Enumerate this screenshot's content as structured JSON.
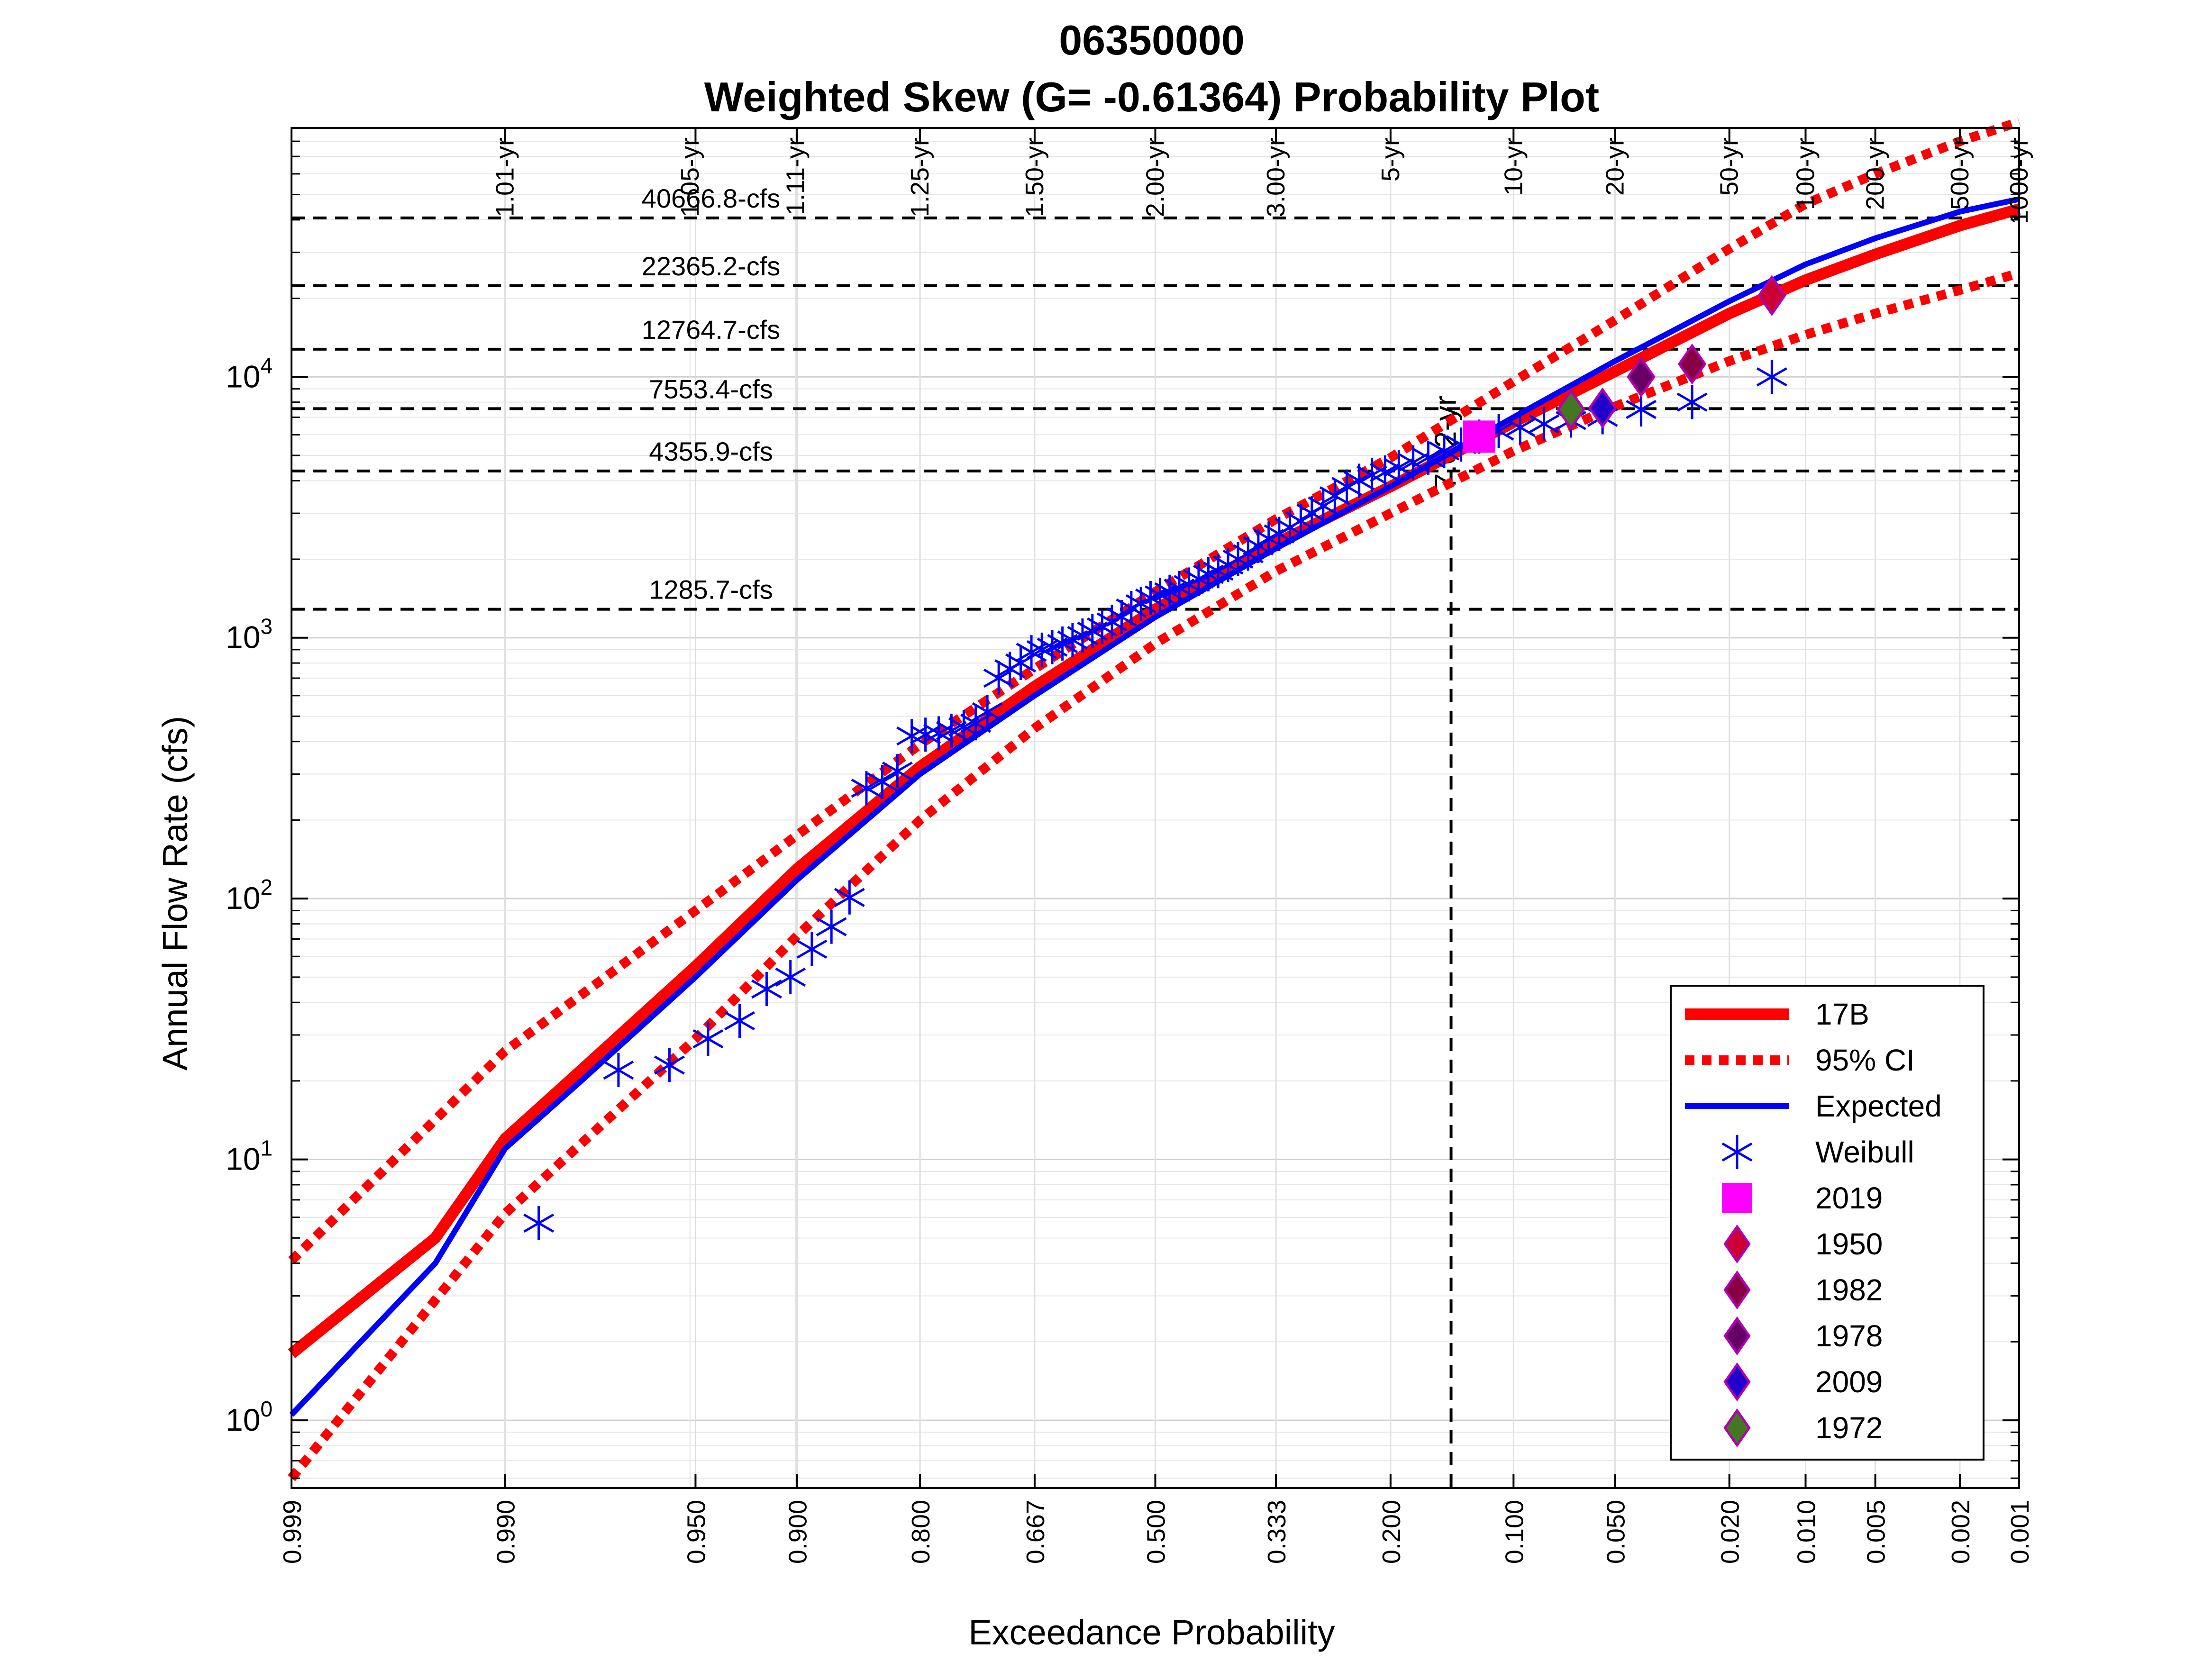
{
  "chart_data": {
    "type": "scatter",
    "title": "06350000",
    "subtitle": "Weighted Skew (G= -0.61364) Probability Plot",
    "xlabel": "Exceedance Probability",
    "ylabel": "Annual Flow Rate (cfs)",
    "x_scale": "normal-probability (reversed)",
    "y_scale": "log",
    "xlim": [
      0.999,
      0.001
    ],
    "ylim": [
      0.55,
      90000
    ],
    "grid": true,
    "x_ticks": [
      "0.999",
      "0.990",
      "0.950",
      "0.900",
      "0.800",
      "0.667",
      "0.500",
      "0.333",
      "0.200",
      "0.100",
      "0.050",
      "0.020",
      "0.010",
      "0.005",
      "0.002",
      "0.001"
    ],
    "y_tick_labels": [
      {
        "base": "10",
        "exp": "0"
      },
      {
        "base": "10",
        "exp": "1"
      },
      {
        "base": "10",
        "exp": "2"
      },
      {
        "base": "10",
        "exp": "3"
      },
      {
        "base": "10",
        "exp": "4"
      }
    ],
    "y_tick_values": [
      1,
      10,
      100,
      1000,
      10000
    ],
    "top_labels": [
      {
        "p": 0.99,
        "text": "1.01-yr"
      },
      {
        "p": 0.952,
        "text": "1.05-yr"
      },
      {
        "p": 0.901,
        "text": "1.11-yr"
      },
      {
        "p": 0.8,
        "text": "1.25-yr"
      },
      {
        "p": 0.667,
        "text": "1.50-yr"
      },
      {
        "p": 0.5,
        "text": "2.00-yr"
      },
      {
        "p": 0.333,
        "text": "3.00-yr"
      },
      {
        "p": 0.2,
        "text": "5-yr"
      },
      {
        "p": 0.1,
        "text": "10-yr"
      },
      {
        "p": 0.05,
        "text": "20-yr"
      },
      {
        "p": 0.02,
        "text": "50-yr"
      },
      {
        "p": 0.01,
        "text": "100-yr"
      },
      {
        "p": 0.005,
        "text": "200-yr"
      },
      {
        "p": 0.002,
        "text": "500-yr"
      },
      {
        "p": 0.001,
        "text": "1000-yr"
      }
    ],
    "reference_lines": [
      {
        "value": 40666.8,
        "label": "40666.8-cfs"
      },
      {
        "value": 22365.2,
        "label": "22365.2-cfs"
      },
      {
        "value": 12764.7,
        "label": "12764.7-cfs"
      },
      {
        "value": 7553.4,
        "label": "7553.4-cfs"
      },
      {
        "value": 4355.9,
        "label": "4355.9-cfs"
      },
      {
        "value": 1285.7,
        "label": "1285.7-cfs"
      }
    ],
    "marked_event": {
      "p": 0.145,
      "label": "7.02-yr"
    },
    "series": [
      {
        "name": "17B",
        "color": "#ff0000",
        "style": "solid-thick",
        "x": [
          0.999,
          0.995,
          0.99,
          0.98,
          0.95,
          0.9,
          0.8,
          0.667,
          0.5,
          0.333,
          0.2,
          0.1,
          0.05,
          0.02,
          0.01,
          0.005,
          0.002,
          0.001
        ],
        "y": [
          1.8,
          5.0,
          12.0,
          22.0,
          55.0,
          130.0,
          320.0,
          650.0,
          1285.7,
          2300.0,
          3800.0,
          6700.0,
          10500.0,
          17500.0,
          23500.0,
          29500.0,
          38000.0,
          44000.0
        ]
      },
      {
        "name": "95% CI",
        "color": "#ff0000",
        "style": "dotted",
        "x": [
          0.999,
          0.99,
          0.95,
          0.9,
          0.8,
          0.667,
          0.5,
          0.333,
          0.2,
          0.1,
          0.05,
          0.02,
          0.01,
          0.005,
          0.002,
          0.001
        ],
        "y": [
          4.1,
          26.0,
          90.0,
          175.0,
          390.0,
          760.0,
          1500.0,
          2850.0,
          4900.0,
          9600.0,
          16500.0,
          31000.0,
          46000.0,
          60000.0,
          80000.0,
          95000.0
        ]
      },
      {
        "name": "95% CI lower",
        "color": "#ff0000",
        "style": "dotted",
        "legend": false,
        "x": [
          0.999,
          0.99,
          0.95,
          0.9,
          0.8,
          0.667,
          0.5,
          0.333,
          0.2,
          0.1,
          0.05,
          0.02,
          0.01,
          0.005,
          0.002,
          0.001
        ],
        "y": [
          0.6,
          6.2,
          29.0,
          72.0,
          200.0,
          450.0,
          950.0,
          1800.0,
          3000.0,
          5200.0,
          7700.0,
          11500.0,
          14500.0,
          17500.0,
          21500.0,
          25000.0
        ]
      },
      {
        "name": "Expected",
        "color": "#0000ff",
        "style": "solid",
        "x": [
          0.999,
          0.995,
          0.99,
          0.98,
          0.95,
          0.9,
          0.8,
          0.667,
          0.5,
          0.333,
          0.2,
          0.1,
          0.05,
          0.02,
          0.01,
          0.005,
          0.002,
          0.001
        ],
        "y": [
          1.05,
          4.0,
          11.0,
          20.0,
          50.0,
          118.0,
          300.0,
          600.0,
          1200.0,
          2200.0,
          3800.0,
          7000.0,
          11500.0,
          19500.0,
          27000.0,
          34000.0,
          43000.0,
          48000.0
        ]
      },
      {
        "name": "Weibull",
        "color": "#0000ff",
        "marker": "asterisk",
        "x": [
          0.9863,
          0.9726,
          0.9589,
          0.9452,
          0.9315,
          0.9178,
          0.9041,
          0.8904,
          0.8767,
          0.863,
          0.8493,
          0.8356,
          0.8219,
          0.8082,
          0.7945,
          0.7808,
          0.7671,
          0.7534,
          0.7397,
          0.726,
          0.7123,
          0.6986,
          0.6849,
          0.6712,
          0.6575,
          0.6438,
          0.6301,
          0.6164,
          0.6027,
          0.589,
          0.5753,
          0.5616,
          0.5479,
          0.5342,
          0.5205,
          0.5068,
          0.4932,
          0.4795,
          0.4658,
          0.4521,
          0.4384,
          0.4247,
          0.411,
          0.3973,
          0.3836,
          0.3699,
          0.3562,
          0.3425,
          0.3288,
          0.3151,
          0.3014,
          0.2877,
          0.274,
          0.2603,
          0.2466,
          0.2329,
          0.2192,
          0.2055,
          0.1918,
          0.1781,
          0.1644,
          0.1507,
          0.137,
          0.1233,
          0.1096,
          0.0959,
          0.0822,
          0.0685,
          0.0548,
          0.0411,
          0.0274,
          0.0137
        ],
        "y": [
          5.7,
          22,
          23,
          29,
          34,
          45,
          50,
          64,
          78,
          101,
          265,
          280,
          308,
          420,
          425,
          430,
          440,
          455,
          470,
          520,
          700,
          760,
          800,
          880,
          900,
          920,
          950,
          980,
          1020,
          1060,
          1100,
          1150,
          1200,
          1300,
          1350,
          1420,
          1460,
          1500,
          1550,
          1600,
          1680,
          1750,
          1800,
          1900,
          2000,
          2100,
          2250,
          2400,
          2500,
          2650,
          2800,
          3000,
          3200,
          3500,
          3800,
          4000,
          4200,
          4300,
          4500,
          4700,
          4900,
          5200,
          5500,
          5900,
          6200,
          6400,
          6600,
          6800,
          7000,
          7500,
          8000,
          10000
        ]
      }
    ],
    "highlighted_points": [
      {
        "name": "2019",
        "p": 0.1233,
        "value": 5900,
        "color": "#ff00ff",
        "marker": "square"
      },
      {
        "name": "1950",
        "p": 0.0137,
        "value": 20500,
        "color": "#cc0033",
        "marker": "diamond"
      },
      {
        "name": "1982",
        "p": 0.0274,
        "value": 11200,
        "color": "#880044",
        "marker": "diamond"
      },
      {
        "name": "1978",
        "p": 0.0411,
        "value": 10000,
        "color": "#660066",
        "marker": "diamond"
      },
      {
        "name": "2009",
        "p": 0.0548,
        "value": 7600,
        "color": "#2200cc",
        "marker": "diamond"
      },
      {
        "name": "1972",
        "p": 0.0685,
        "value": 7500,
        "color": "#447722",
        "marker": "diamond"
      }
    ]
  }
}
